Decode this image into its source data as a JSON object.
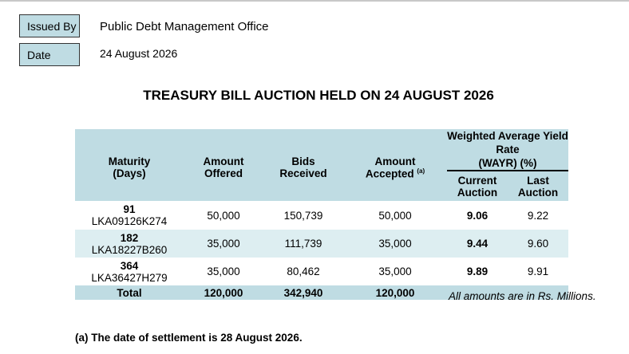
{
  "header": {
    "issued_by_label": "Issued By",
    "issued_by_value": "Public Debt Management Office",
    "date_label": "Date",
    "date_value": "24 August 2026"
  },
  "title": "TREASURY BILL AUCTION HELD ON 24 AUGUST 2026",
  "table": {
    "col_maturity": "Maturity",
    "col_maturity_unit": "(Days)",
    "col_offered_1": "Amount",
    "col_offered_2": "Offered",
    "col_bids_1": "Bids",
    "col_bids_2": "Received",
    "col_accepted_1": "Amount",
    "col_accepted_2": "Accepted",
    "col_accepted_note": "(a)",
    "wayr_title_1": "Weighted Average Yield Rate",
    "wayr_title_2": "(WAYR) (%)",
    "col_current_1": "Current",
    "col_current_2": "Auction",
    "col_last_1": "Last",
    "col_last_2": "Auction",
    "rows": [
      {
        "days": "91",
        "isin": "LKA09126K274",
        "offered": "50,000",
        "bids": "150,739",
        "accepted": "50,000",
        "current": "9.06",
        "last": "9.22"
      },
      {
        "days": "182",
        "isin": "LKA18227B260",
        "offered": "35,000",
        "bids": "111,739",
        "accepted": "35,000",
        "current": "9.44",
        "last": "9.60"
      },
      {
        "days": "364",
        "isin": "LKA36427H279",
        "offered": "35,000",
        "bids": "80,462",
        "accepted": "35,000",
        "current": "9.89",
        "last": "9.91"
      }
    ],
    "total_label": "Total",
    "total_offered": "120,000",
    "total_bids": "342,940",
    "total_accepted": "120,000"
  },
  "units_note": "All amounts are in Rs. Millions.",
  "footnote": "(a) The date of settlement is 28 August 2026."
}
